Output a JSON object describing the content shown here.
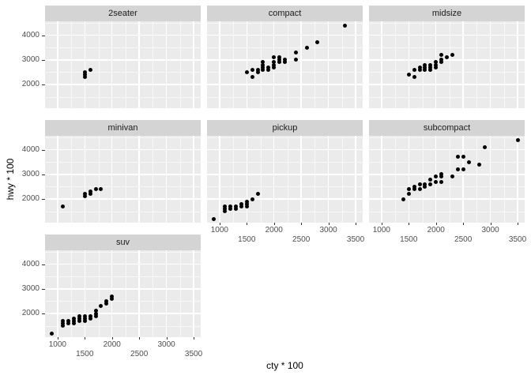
{
  "figure": {
    "background": "#FFFFFF",
    "panel_background": "#EBEBEB",
    "strip_background": "#D4D4D4",
    "gridline_color": "#FFFFFF",
    "axis_text_color": "#4D4D4D",
    "point_color": "#000000"
  },
  "chart_data": {
    "type": "scatter",
    "title": "",
    "xlabel": "cty * 100",
    "ylabel": "hwy * 100",
    "legend": "none",
    "grid": true,
    "faceting": {
      "variable": "class",
      "layout": "wrap",
      "ncol": 3
    },
    "x_ticks": [
      1000,
      1500,
      2000,
      2500,
      3000,
      3500
    ],
    "x_tick_rows": {
      "row1": [
        1000,
        2000,
        3000
      ],
      "row2": [
        1500,
        2500,
        3500
      ]
    },
    "y_ticks": [
      2000,
      3000,
      4000
    ],
    "x_minor": [
      1250,
      1750,
      2250,
      2750,
      3250
    ],
    "y_minor": [
      1500,
      2500,
      3500,
      4500
    ],
    "xlim": [
      770,
      3630
    ],
    "ylim": [
      1040,
      4560
    ],
    "facets": [
      {
        "label": "2seater",
        "row": 0,
        "col": 0,
        "x_axis": false,
        "y_axis": true,
        "points": [
          [
            1500,
            2300
          ],
          [
            1500,
            2400
          ],
          [
            1500,
            2500
          ],
          [
            1600,
            2600
          ]
        ]
      },
      {
        "label": "compact",
        "row": 0,
        "col": 1,
        "x_axis": false,
        "y_axis": false,
        "points": [
          [
            1500,
            2500
          ],
          [
            1600,
            2300
          ],
          [
            1600,
            2600
          ],
          [
            1700,
            2500
          ],
          [
            1700,
            2600
          ],
          [
            1800,
            2600
          ],
          [
            1800,
            2700
          ],
          [
            1800,
            2800
          ],
          [
            1800,
            2900
          ],
          [
            1900,
            2600
          ],
          [
            1900,
            2700
          ],
          [
            2000,
            2700
          ],
          [
            2000,
            2800
          ],
          [
            2000,
            2900
          ],
          [
            2000,
            3100
          ],
          [
            2100,
            2900
          ],
          [
            2100,
            3000
          ],
          [
            2100,
            3100
          ],
          [
            2200,
            2900
          ],
          [
            2200,
            3000
          ],
          [
            2400,
            3000
          ],
          [
            2400,
            3300
          ],
          [
            2600,
            3500
          ],
          [
            2800,
            3700
          ],
          [
            3300,
            4400
          ]
        ]
      },
      {
        "label": "midsize",
        "row": 0,
        "col": 2,
        "x_axis": false,
        "y_axis": false,
        "points": [
          [
            1500,
            2400
          ],
          [
            1600,
            2300
          ],
          [
            1600,
            2600
          ],
          [
            1700,
            2600
          ],
          [
            1700,
            2700
          ],
          [
            1800,
            2600
          ],
          [
            1800,
            2700
          ],
          [
            1800,
            2800
          ],
          [
            1900,
            2600
          ],
          [
            1900,
            2700
          ],
          [
            1900,
            2800
          ],
          [
            2000,
            2700
          ],
          [
            2000,
            2800
          ],
          [
            2000,
            2900
          ],
          [
            2100,
            2900
          ],
          [
            2100,
            3000
          ],
          [
            2100,
            3200
          ],
          [
            2200,
            3100
          ],
          [
            2300,
            3200
          ]
        ]
      },
      {
        "label": "minivan",
        "row": 1,
        "col": 0,
        "x_axis": false,
        "y_axis": true,
        "points": [
          [
            1100,
            1700
          ],
          [
            1500,
            2100
          ],
          [
            1500,
            2200
          ],
          [
            1600,
            2200
          ],
          [
            1600,
            2300
          ],
          [
            1700,
            2400
          ],
          [
            1800,
            2400
          ]
        ]
      },
      {
        "label": "pickup",
        "row": 1,
        "col": 1,
        "x_axis": true,
        "y_axis": false,
        "points": [
          [
            900,
            1200
          ],
          [
            1100,
            1500
          ],
          [
            1100,
            1600
          ],
          [
            1100,
            1700
          ],
          [
            1200,
            1600
          ],
          [
            1200,
            1700
          ],
          [
            1300,
            1600
          ],
          [
            1300,
            1700
          ],
          [
            1400,
            1700
          ],
          [
            1400,
            1800
          ],
          [
            1500,
            1700
          ],
          [
            1500,
            1800
          ],
          [
            1500,
            1900
          ],
          [
            1600,
            2000
          ],
          [
            1700,
            2200
          ]
        ]
      },
      {
        "label": "subcompact",
        "row": 1,
        "col": 2,
        "x_axis": true,
        "y_axis": false,
        "points": [
          [
            1400,
            2000
          ],
          [
            1500,
            2200
          ],
          [
            1500,
            2400
          ],
          [
            1600,
            2400
          ],
          [
            1600,
            2500
          ],
          [
            1700,
            2400
          ],
          [
            1700,
            2600
          ],
          [
            1800,
            2500
          ],
          [
            1800,
            2600
          ],
          [
            1900,
            2600
          ],
          [
            1900,
            2800
          ],
          [
            2000,
            2700
          ],
          [
            2000,
            2900
          ],
          [
            2100,
            2700
          ],
          [
            2100,
            2900
          ],
          [
            2100,
            3000
          ],
          [
            2300,
            2900
          ],
          [
            2400,
            3200
          ],
          [
            2400,
            3700
          ],
          [
            2500,
            3200
          ],
          [
            2500,
            3700
          ],
          [
            2600,
            3500
          ],
          [
            2800,
            3400
          ],
          [
            2900,
            4100
          ],
          [
            3500,
            4400
          ]
        ]
      },
      {
        "label": "suv",
        "row": 2,
        "col": 0,
        "x_axis": true,
        "y_axis": true,
        "points": [
          [
            900,
            1200
          ],
          [
            1100,
            1500
          ],
          [
            1100,
            1600
          ],
          [
            1100,
            1700
          ],
          [
            1200,
            1600
          ],
          [
            1200,
            1700
          ],
          [
            1300,
            1600
          ],
          [
            1300,
            1700
          ],
          [
            1300,
            1800
          ],
          [
            1400,
            1700
          ],
          [
            1400,
            1800
          ],
          [
            1400,
            1900
          ],
          [
            1500,
            1700
          ],
          [
            1500,
            1800
          ],
          [
            1500,
            1900
          ],
          [
            1600,
            1800
          ],
          [
            1600,
            1900
          ],
          [
            1700,
            1900
          ],
          [
            1700,
            2000
          ],
          [
            1700,
            2100
          ],
          [
            1800,
            2300
          ],
          [
            1900,
            2400
          ],
          [
            1900,
            2500
          ],
          [
            2000,
            2600
          ],
          [
            2000,
            2700
          ]
        ]
      }
    ]
  }
}
